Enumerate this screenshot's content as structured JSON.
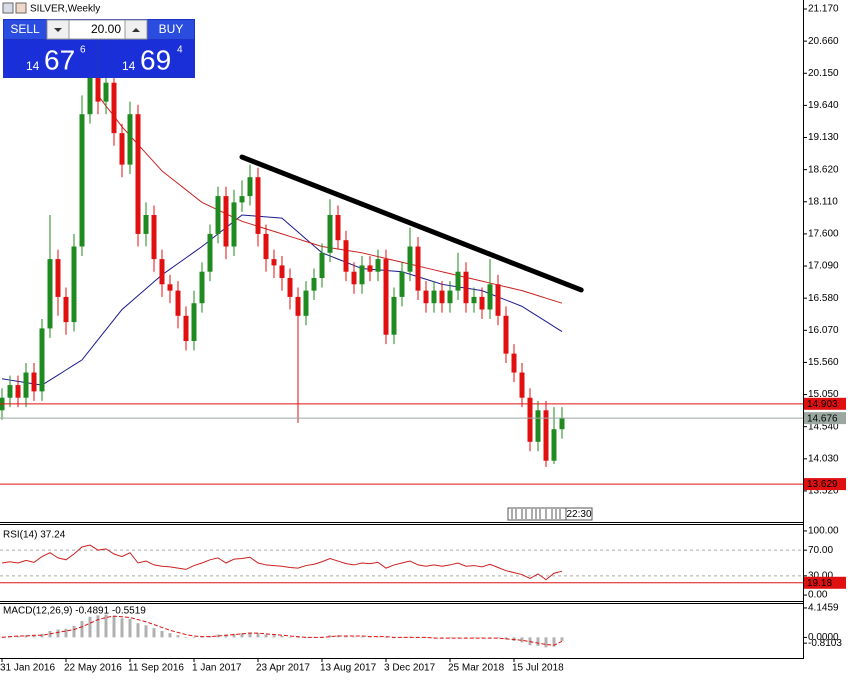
{
  "trade_panel": {
    "sell_label": "SELL",
    "buy_label": "BUY",
    "volume": "20.00",
    "sell_price": {
      "big": "14",
      "main": "67",
      "small": "6"
    },
    "buy_price": {
      "big": "14",
      "main": "69",
      "small": "4"
    }
  },
  "time_box": "22:30",
  "chart_data": [
    {
      "type": "candlestick",
      "title": "SILVER,Weekly",
      "categories": [
        "31 Jan 2016",
        null,
        null,
        null,
        null,
        null,
        null,
        null,
        "22 May 2016",
        null,
        null,
        null,
        null,
        null,
        null,
        null,
        "11 Sep 2016",
        null,
        null,
        null,
        null,
        null,
        null,
        null,
        "1 Jan 2017",
        null,
        null,
        null,
        null,
        null,
        null,
        null,
        "23 Apr 2017",
        null,
        null,
        null,
        null,
        null,
        null,
        null,
        "13 Aug 2017",
        null,
        null,
        null,
        null,
        null,
        null,
        null,
        "3 Dec 2017",
        null,
        null,
        null,
        null,
        null,
        null,
        null,
        "25 Mar 2018",
        null,
        null,
        null,
        null,
        null,
        null,
        null,
        "15 Jul 2018",
        null,
        null,
        null,
        null,
        null,
        null
      ],
      "candles": [
        [
          14.8,
          15.15,
          14.65,
          15.0
        ],
        [
          15.0,
          15.35,
          14.85,
          15.2
        ],
        [
          15.2,
          15.35,
          14.85,
          15.0
        ],
        [
          15.0,
          15.55,
          14.85,
          15.4
        ],
        [
          15.4,
          15.55,
          14.95,
          15.1
        ],
        [
          15.1,
          16.25,
          14.95,
          16.1
        ],
        [
          16.1,
          17.9,
          15.95,
          17.2
        ],
        [
          17.2,
          17.35,
          16.3,
          16.6
        ],
        [
          16.6,
          16.75,
          16.0,
          16.2
        ],
        [
          16.2,
          17.6,
          16.05,
          17.4
        ],
        [
          17.4,
          19.8,
          17.25,
          19.5
        ],
        [
          19.5,
          20.6,
          19.35,
          20.3
        ],
        [
          20.3,
          20.45,
          19.5,
          19.7
        ],
        [
          19.7,
          20.2,
          19.5,
          20.0
        ],
        [
          20.0,
          20.15,
          19.0,
          19.2
        ],
        [
          19.2,
          19.35,
          18.5,
          18.7
        ],
        [
          18.7,
          19.7,
          18.55,
          19.5
        ],
        [
          19.5,
          19.65,
          17.4,
          17.6
        ],
        [
          17.6,
          18.1,
          17.4,
          17.9
        ],
        [
          17.9,
          18.05,
          17.0,
          17.2
        ],
        [
          17.2,
          17.35,
          16.6,
          16.8
        ],
        [
          16.8,
          16.95,
          16.5,
          16.7
        ],
        [
          16.7,
          16.85,
          16.1,
          16.3
        ],
        [
          16.3,
          16.45,
          15.75,
          15.9
        ],
        [
          15.9,
          16.7,
          15.75,
          16.5
        ],
        [
          16.5,
          17.15,
          16.35,
          17.0
        ],
        [
          17.0,
          17.75,
          16.85,
          17.6
        ],
        [
          17.6,
          18.35,
          17.45,
          18.2
        ],
        [
          18.2,
          18.35,
          17.2,
          17.4
        ],
        [
          17.4,
          18.3,
          17.25,
          18.1
        ],
        [
          18.1,
          18.45,
          17.95,
          18.2
        ],
        [
          18.2,
          18.7,
          18.05,
          18.5
        ],
        [
          18.5,
          18.65,
          17.4,
          17.6
        ],
        [
          17.6,
          17.75,
          17.0,
          17.2
        ],
        [
          17.2,
          17.35,
          16.9,
          17.1
        ],
        [
          17.1,
          17.25,
          16.7,
          16.9
        ],
        [
          16.9,
          17.05,
          16.4,
          16.6
        ],
        [
          16.6,
          16.75,
          14.6,
          16.3
        ],
        [
          16.3,
          16.85,
          16.15,
          16.7
        ],
        [
          16.7,
          17.05,
          16.55,
          16.9
        ],
        [
          16.9,
          17.45,
          16.75,
          17.3
        ],
        [
          17.3,
          18.15,
          17.15,
          17.9
        ],
        [
          17.9,
          18.05,
          17.35,
          17.5
        ],
        [
          17.5,
          17.65,
          16.85,
          17.0
        ],
        [
          17.0,
          17.15,
          16.65,
          16.8
        ],
        [
          16.8,
          17.25,
          16.65,
          17.1
        ],
        [
          17.1,
          17.25,
          16.85,
          17.0
        ],
        [
          17.0,
          17.35,
          16.85,
          17.2
        ],
        [
          17.2,
          17.35,
          15.85,
          16.0
        ],
        [
          16.0,
          16.75,
          15.85,
          16.6
        ],
        [
          16.6,
          17.15,
          16.45,
          17.0
        ],
        [
          17.0,
          17.7,
          16.85,
          17.4
        ],
        [
          17.4,
          17.55,
          16.55,
          16.7
        ],
        [
          16.7,
          16.85,
          16.35,
          16.5
        ],
        [
          16.5,
          16.85,
          16.35,
          16.7
        ],
        [
          16.7,
          16.85,
          16.35,
          16.5
        ],
        [
          16.5,
          16.85,
          16.35,
          16.7
        ],
        [
          16.7,
          17.3,
          16.55,
          17.0
        ],
        [
          17.0,
          17.15,
          16.35,
          16.5
        ],
        [
          16.5,
          16.75,
          16.35,
          16.6
        ],
        [
          16.6,
          16.75,
          16.25,
          16.4
        ],
        [
          16.4,
          17.2,
          16.25,
          16.8
        ],
        [
          16.8,
          16.95,
          16.15,
          16.3
        ],
        [
          16.3,
          16.45,
          15.55,
          15.7
        ],
        [
          15.7,
          15.85,
          15.25,
          15.4
        ],
        [
          15.4,
          15.55,
          14.85,
          15.0
        ],
        [
          15.0,
          15.15,
          14.15,
          14.3
        ],
        [
          14.3,
          14.95,
          14.15,
          14.8
        ],
        [
          14.8,
          14.95,
          13.9,
          14.0
        ],
        [
          14.0,
          14.85,
          13.95,
          14.5
        ],
        [
          14.5,
          14.85,
          14.35,
          14.68
        ]
      ],
      "up_color": "#1f8a1f",
      "down_color": "#e01010",
      "series": [
        {
          "color": "#1a1a90",
          "values": [
            15.3,
            15.28,
            15.26,
            15.24,
            15.22,
            15.2,
            15.28,
            15.36,
            15.44,
            15.52,
            15.6,
            15.76,
            15.92,
            16.08,
            16.24,
            16.4,
            16.51,
            16.62,
            16.73,
            16.84,
            16.95,
            17.04,
            17.13,
            17.22,
            17.31,
            17.4,
            17.5,
            17.6,
            17.7,
            17.8,
            17.9,
            17.89,
            17.88,
            17.87,
            17.86,
            17.85,
            17.74,
            17.63,
            17.52,
            17.41,
            17.3,
            17.25,
            17.2,
            17.15,
            17.1,
            17.05,
            17.04,
            17.03,
            17.02,
            17.01,
            17.0,
            16.96,
            16.92,
            16.88,
            16.84,
            16.8,
            16.78,
            16.76,
            16.74,
            16.72,
            16.7,
            16.65,
            16.6,
            16.55,
            16.5,
            16.45,
            16.37,
            16.29,
            16.21,
            16.13,
            16.05
          ]
        },
        {
          "color": "#cc2020",
          "values": [
            null,
            null,
            null,
            null,
            null,
            null,
            null,
            null,
            null,
            null,
            null,
            null,
            19.8,
            19.63,
            19.47,
            19.3,
            19.16,
            19.02,
            18.88,
            18.74,
            18.6,
            18.5,
            18.4,
            18.3,
            18.2,
            18.1,
            18.04,
            17.98,
            17.92,
            17.86,
            17.8,
            17.76,
            17.72,
            17.68,
            17.64,
            17.6,
            17.56,
            17.52,
            17.48,
            17.44,
            17.4,
            17.38,
            17.36,
            17.34,
            17.32,
            17.3,
            17.27,
            17.24,
            17.21,
            17.18,
            17.15,
            17.12,
            17.09,
            17.06,
            17.03,
            17.0,
            16.97,
            16.94,
            16.91,
            16.88,
            16.85,
            16.82,
            16.79,
            16.76,
            16.73,
            16.7,
            16.66,
            16.62,
            16.58,
            16.54,
            16.5
          ]
        }
      ],
      "trendline": {
        "from": [
          30,
          18.82
        ],
        "to": [
          72.4,
          16.71
        ],
        "color": "#000000"
      },
      "levels": [
        {
          "value": 14.903,
          "color": "#e01010"
        },
        {
          "value": 14.676,
          "color": "#9aa8a0"
        },
        {
          "value": 13.629,
          "color": "#e01010"
        }
      ],
      "ylim": [
        13.027,
        21.313
      ],
      "yticks": [
        {
          "value": 21.17,
          "label": "21.170"
        },
        {
          "value": 20.66,
          "label": "20.660"
        },
        {
          "value": 20.15,
          "label": "20.150"
        },
        {
          "value": 19.64,
          "label": "19.640"
        },
        {
          "value": 19.13,
          "label": "19.130"
        },
        {
          "value": 18.62,
          "label": "18.620"
        },
        {
          "value": 18.11,
          "label": "18.110"
        },
        {
          "value": 17.6,
          "label": "17.600"
        },
        {
          "value": 17.09,
          "label": "17.090"
        },
        {
          "value": 16.58,
          "label": "16.580"
        },
        {
          "value": 16.07,
          "label": "16.070"
        },
        {
          "value": 15.56,
          "label": "15.560"
        },
        {
          "value": 15.05,
          "label": "15.050"
        },
        {
          "value": 14.54,
          "label": "14.540"
        },
        {
          "value": 14.03,
          "label": "14.030"
        },
        {
          "value": 13.52,
          "label": "13.520"
        }
      ]
    },
    {
      "type": "line",
      "title": "RSI(14) 37.24",
      "color": "#cc2020",
      "values": [
        50,
        52,
        50,
        54,
        51,
        60,
        66,
        58,
        55,
        64,
        75,
        78,
        70,
        72,
        64,
        60,
        66,
        50,
        53,
        47,
        45,
        44,
        42,
        40,
        46,
        50,
        55,
        58,
        50,
        56,
        57,
        59,
        50,
        47,
        46,
        45,
        43,
        42,
        46,
        48,
        52,
        57,
        53,
        49,
        47,
        50,
        49,
        51,
        42,
        47,
        50,
        53,
        47,
        45,
        47,
        45,
        47,
        50,
        45,
        46,
        44,
        48,
        43,
        38,
        35,
        32,
        26,
        33,
        24,
        34,
        37.24
      ],
      "levels": [
        {
          "value": 19.18,
          "color": "#e01010"
        }
      ],
      "ylim": [
        -9.23,
        109.23
      ],
      "yticks": [
        {
          "value": 100,
          "label": "100.00"
        },
        {
          "value": 70,
          "label": "70.00"
        },
        {
          "value": 30,
          "label": "30.00"
        },
        {
          "value": 0,
          "label": "0.00"
        }
      ]
    },
    {
      "type": "histogram",
      "title": "MACD(12,26,9) -0.4891 -0.5519",
      "color": "#b0b0b0",
      "values": [
        0.1,
        0.2,
        0.2,
        0.3,
        0.3,
        0.5,
        0.9,
        1.1,
        1.2,
        1.6,
        2.3,
        2.9,
        3.1,
        3.2,
        3.0,
        2.7,
        2.6,
        2.0,
        1.7,
        1.3,
        0.9,
        0.6,
        0.3,
        0.0,
        -0.1,
        0.0,
        0.2,
        0.4,
        0.4,
        0.5,
        0.6,
        0.7,
        0.6,
        0.4,
        0.3,
        0.2,
        0.0,
        -0.1,
        -0.1,
        0.0,
        0.1,
        0.3,
        0.3,
        0.2,
        0.1,
        0.1,
        0.1,
        0.1,
        -0.1,
        -0.1,
        0.0,
        0.1,
        0.0,
        -0.1,
        -0.1,
        -0.1,
        -0.1,
        0.0,
        -0.1,
        -0.1,
        -0.1,
        0.0,
        -0.1,
        -0.3,
        -0.5,
        -0.7,
        -1.1,
        -1.2,
        -1.4,
        -1.3,
        -0.4891
      ],
      "series": [
        {
          "color": "#e01010",
          "values": [
            0.0,
            0.1,
            0.2,
            0.2,
            0.3,
            0.3,
            0.5,
            0.7,
            0.9,
            1.1,
            1.5,
            2.0,
            2.5,
            2.8,
            3.0,
            2.9,
            2.8,
            2.5,
            2.2,
            1.8,
            1.4,
            1.0,
            0.7,
            0.4,
            0.2,
            0.1,
            0.1,
            0.2,
            0.3,
            0.4,
            0.5,
            0.6,
            0.6,
            0.5,
            0.4,
            0.3,
            0.2,
            0.1,
            0.0,
            0.0,
            0.0,
            0.1,
            0.2,
            0.2,
            0.2,
            0.2,
            0.1,
            0.1,
            0.1,
            0.0,
            0.0,
            0.0,
            0.0,
            0.0,
            -0.1,
            -0.1,
            -0.1,
            -0.1,
            -0.1,
            -0.1,
            -0.1,
            -0.1,
            -0.1,
            -0.2,
            -0.3,
            -0.4,
            -0.6,
            -0.8,
            -1.0,
            -1.1,
            -0.5519
          ]
        }
      ],
      "ylim": [
        -2.9,
        4.7
      ],
      "yticks": [
        4.1459,
        {
          "value": 0,
          "label": "0.0000"
        },
        -0.8103
      ]
    }
  ]
}
